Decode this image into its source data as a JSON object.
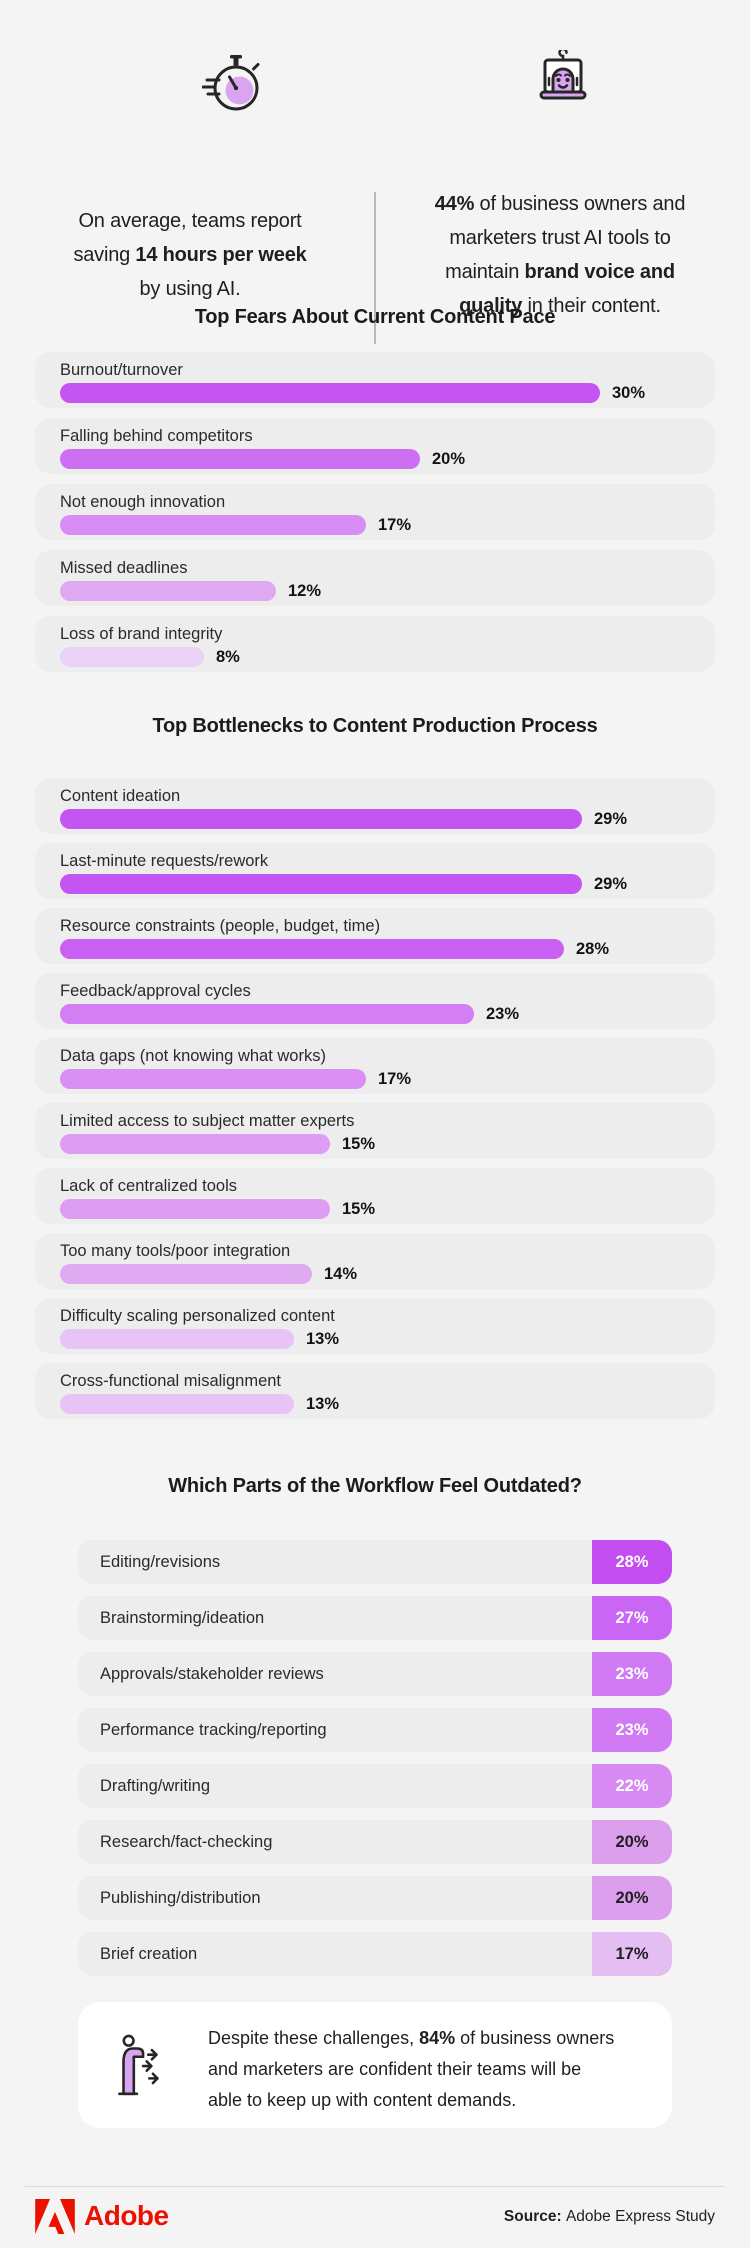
{
  "page": {
    "background": "#f5f4f5",
    "card_gray": "#eeedee",
    "accent_purple": "#c455f2",
    "adobe_red": "#eb1000"
  },
  "header": {
    "left": {
      "icon": "stopwatch-icon",
      "lines": [
        [
          {
            "t": "On average, teams report"
          }
        ],
        [
          {
            "t": "saving "
          },
          {
            "t": "14 hours per week",
            "b": true
          }
        ],
        [
          {
            "t": "by using AI."
          }
        ]
      ]
    },
    "right": {
      "icon": "ai-robot-laptop-icon",
      "lines": [
        [
          {
            "t": "44%",
            "b": true
          },
          {
            "t": " of business owners and"
          }
        ],
        [
          {
            "t": "marketers trust AI tools to"
          }
        ],
        [
          {
            "t": "maintain "
          },
          {
            "t": "brand voice and",
            "b": true
          }
        ],
        [
          {
            "t": "quality",
            "b": true
          },
          {
            "t": " in their content."
          }
        ]
      ]
    }
  },
  "chart_data": [
    {
      "type": "bar",
      "orientation": "horizontal",
      "title": "Top Fears About Current Content Pace",
      "unit": "%",
      "xlim": [
        0,
        33
      ],
      "grid": false,
      "categories": [
        "Burnout/turnover",
        "Falling behind competitors",
        "Not enough innovation",
        "Missed deadlines",
        "Loss of brand integrity"
      ],
      "values": [
        30,
        20,
        17,
        12,
        8
      ],
      "value_labels": [
        "30%",
        "20%",
        "17%",
        "12%",
        "8%"
      ],
      "bar_colors": [
        "#c455f2",
        "#cd6ff3",
        "#d78df3",
        "#dfa9f2",
        "#ebd2f7"
      ]
    },
    {
      "type": "bar",
      "orientation": "horizontal",
      "title": "Top Bottlenecks to Content Production Process",
      "unit": "%",
      "xlim": [
        0,
        33
      ],
      "grid": false,
      "categories": [
        "Content ideation",
        "Last-minute requests/rework",
        "Resource constraints (people, budget, time)",
        "Feedback/approval cycles",
        "Data gaps (not knowing what works)",
        "Limited access to subject matter experts",
        "Lack of centralized tools",
        "Too many tools/poor integration",
        "Difficulty scaling personalized content",
        "Cross-functional misalignment"
      ],
      "values": [
        29,
        29,
        28,
        23,
        17,
        15,
        15,
        14,
        13,
        13
      ],
      "value_labels": [
        "29%",
        "29%",
        "28%",
        "23%",
        "17%",
        "15%",
        "15%",
        "14%",
        "13%",
        "13%"
      ],
      "bar_colors": [
        "#c455f2",
        "#c455f2",
        "#c960f3",
        "#d37ff3",
        "#d98ff3",
        "#dc9df2",
        "#dc9df2",
        "#e0aaf3",
        "#e8c3f6",
        "#e8c3f6"
      ]
    },
    {
      "type": "bar",
      "orientation": "horizontal",
      "style": "badge-table",
      "title": "Which Parts of the Workflow Feel Outdated?",
      "unit": "%",
      "grid": false,
      "categories": [
        "Editing/revisions",
        "Brainstorming/ideation",
        "Approvals/stakeholder reviews",
        "Performance tracking/reporting",
        "Drafting/writing",
        "Research/fact-checking",
        "Publishing/distribution",
        "Brief creation"
      ],
      "values": [
        28,
        27,
        23,
        23,
        22,
        20,
        20,
        17
      ],
      "value_labels": [
        "28%",
        "27%",
        "23%",
        "23%",
        "22%",
        "20%",
        "20%",
        "17%"
      ],
      "badge_colors": [
        "#c24ef2",
        "#c966f3",
        "#d07af3",
        "#d07af3",
        "#d68af2",
        "#dc9fee",
        "#dc9fee",
        "#e4bdf3"
      ],
      "badge_text_colors": [
        "#ffffff",
        "#ffffff",
        "#ffffff",
        "#ffffff",
        "#ffffff",
        "#1f1f1f",
        "#1f1f1f",
        "#1f1f1f"
      ]
    }
  ],
  "callout": {
    "icon": "person-arrows-icon",
    "lines": [
      [
        {
          "t": "Despite these challenges, "
        },
        {
          "t": "84%",
          "b": true
        },
        {
          "t": " of business owners"
        }
      ],
      [
        {
          "t": "and marketers are confident their teams will be"
        }
      ],
      [
        {
          "t": "able to keep up with content demands."
        }
      ]
    ]
  },
  "footer": {
    "brand": "Adobe",
    "source": [
      {
        "t": "Source: ",
        "b": true
      },
      {
        "t": "Adobe Express Study"
      }
    ]
  }
}
